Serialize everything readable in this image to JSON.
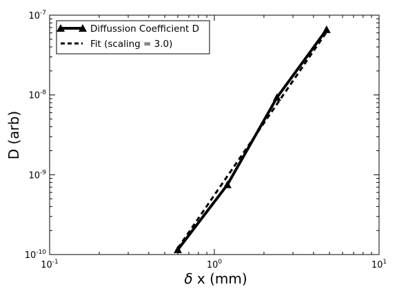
{
  "chart_data": {
    "type": "line",
    "xscale": "log",
    "yscale": "log",
    "xlim": [
      0.1,
      10
    ],
    "ylim": [
      1e-10,
      1e-07
    ],
    "xlabel_symbol": "δ",
    "xlabel": "x (mm)",
    "ylabel": "D (arb)",
    "grid": false,
    "legend_position": "top-left",
    "x_ticks": [
      {
        "value": 0.1,
        "base": "10",
        "exp": "-1"
      },
      {
        "value": 1,
        "base": "10",
        "exp": "0"
      },
      {
        "value": 10,
        "base": "10",
        "exp": "1"
      }
    ],
    "y_ticks": [
      {
        "value": 1e-10,
        "base": "10",
        "exp": "-10"
      },
      {
        "value": 1e-09,
        "base": "10",
        "exp": "-9"
      },
      {
        "value": 1e-08,
        "base": "10",
        "exp": "-8"
      },
      {
        "value": 1e-07,
        "base": "10",
        "exp": "-7"
      }
    ],
    "series": [
      {
        "name": "Diffussion Coefficient D",
        "style": "solid",
        "marker": "triangle",
        "color": "#000000",
        "x": [
          0.6,
          1.2,
          2.4,
          4.8
        ],
        "y": [
          1.15e-10,
          7.5e-10,
          9.3e-09,
          6.6e-08
        ]
      },
      {
        "name": "Fit (scaling = 3.0)",
        "style": "dashed",
        "marker": "none",
        "color": "#000000",
        "x": [
          0.6,
          4.8
        ],
        "y": [
          1.2e-10,
          6.15e-08
        ]
      }
    ]
  }
}
